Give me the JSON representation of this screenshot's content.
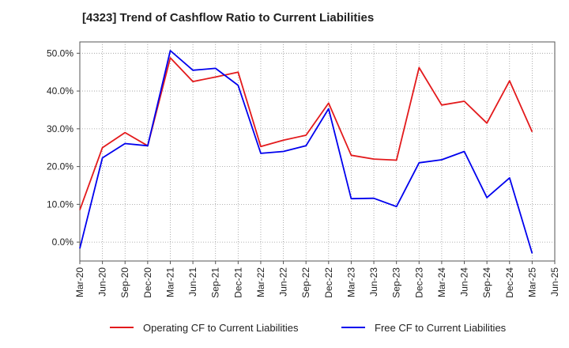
{
  "chart_data": {
    "type": "line",
    "title": "[4323]  Trend of Cashflow Ratio to Current Liabilities",
    "xlabel": "",
    "ylabel": "",
    "x_tick_labels": [
      "Mar-20",
      "Jun-20",
      "Sep-20",
      "Dec-20",
      "Mar-21",
      "Jun-21",
      "Sep-21",
      "Dec-21",
      "Mar-22",
      "Jun-22",
      "Sep-22",
      "Dec-22",
      "Mar-23",
      "Jun-23",
      "Sep-23",
      "Dec-23",
      "Mar-24",
      "Jun-24",
      "Sep-24",
      "Dec-24",
      "Mar-25",
      "Jun-25"
    ],
    "y_tick_labels": [
      "0.0%",
      "10.0%",
      "20.0%",
      "30.0%",
      "40.0%",
      "50.0%"
    ],
    "y_ticks": [
      0,
      10,
      20,
      30,
      40,
      50
    ],
    "ylim": [
      -5,
      53
    ],
    "grid": true,
    "legend_position": "bottom",
    "series": [
      {
        "name": "Operating CF to Current Liabilities",
        "color": "#e31a1c",
        "x": [
          "Mar-20",
          "Jun-20",
          "Sep-20",
          "Dec-20",
          "Mar-21",
          "Jun-21",
          "Sep-21",
          "Dec-21",
          "Mar-22",
          "Jun-22",
          "Sep-22",
          "Dec-22",
          "Mar-23",
          "Jun-23",
          "Sep-23",
          "Dec-23",
          "Mar-24",
          "Jun-24",
          "Sep-24",
          "Dec-24",
          "Mar-25"
        ],
        "values": [
          8.5,
          25.0,
          29.0,
          25.5,
          48.8,
          42.5,
          43.7,
          45.0,
          25.3,
          27.0,
          28.3,
          36.8,
          23.0,
          22.0,
          21.7,
          46.2,
          36.3,
          37.3,
          31.5,
          42.7,
          29.2
        ]
      },
      {
        "name": "Free CF to Current Liabilities",
        "color": "#0000ee",
        "x": [
          "Mar-20",
          "Jun-20",
          "Sep-20",
          "Dec-20",
          "Mar-21",
          "Jun-21",
          "Sep-21",
          "Dec-21",
          "Mar-22",
          "Jun-22",
          "Sep-22",
          "Dec-22",
          "Mar-23",
          "Jun-23",
          "Sep-23",
          "Dec-23",
          "Mar-24",
          "Jun-24",
          "Sep-24",
          "Dec-24",
          "Mar-25"
        ],
        "values": [
          -1.7,
          22.3,
          26.1,
          25.5,
          50.7,
          45.5,
          46.0,
          41.5,
          23.5,
          24.0,
          25.5,
          35.3,
          11.5,
          11.6,
          9.4,
          21.0,
          21.8,
          24.0,
          11.8,
          17.0,
          -3.0
        ]
      }
    ]
  }
}
